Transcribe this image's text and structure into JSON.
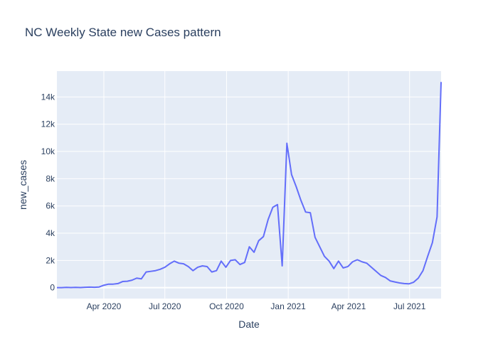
{
  "chart_data": {
    "type": "line",
    "title": "NC Weekly State new Cases pattern",
    "xlabel": "Date",
    "ylabel": "new_cases",
    "colors": {
      "line": "#636efa",
      "plot_bg": "#e5ecf6",
      "grid": "#ffffff",
      "text": "#2a3f5f"
    },
    "grid": true,
    "xlim": [
      "2020-01-22",
      "2021-08-17"
    ],
    "ylim": [
      -800,
      15900
    ],
    "x_ticks": [
      {
        "date": "2020-04-01",
        "label": "Apr 2020"
      },
      {
        "date": "2020-07-01",
        "label": "Jul 2020"
      },
      {
        "date": "2020-10-01",
        "label": "Oct 2020"
      },
      {
        "date": "2021-01-01",
        "label": "Jan 2021"
      },
      {
        "date": "2021-04-01",
        "label": "Apr 2021"
      },
      {
        "date": "2021-07-01",
        "label": "Jul 2021"
      }
    ],
    "y_ticks": [
      {
        "value": 0,
        "label": "0"
      },
      {
        "value": 2000,
        "label": "2k"
      },
      {
        "value": 4000,
        "label": "4k"
      },
      {
        "value": 6000,
        "label": "6k"
      },
      {
        "value": 8000,
        "label": "8k"
      },
      {
        "value": 10000,
        "label": "10k"
      },
      {
        "value": 12000,
        "label": "12k"
      },
      {
        "value": 14000,
        "label": "14k"
      }
    ],
    "series": [
      {
        "x": [
          "2020-01-22",
          "2020-01-29",
          "2020-02-05",
          "2020-02-12",
          "2020-02-19",
          "2020-02-26",
          "2020-03-04",
          "2020-03-11",
          "2020-03-18",
          "2020-03-25",
          "2020-04-01",
          "2020-04-08",
          "2020-04-15",
          "2020-04-22",
          "2020-04-29",
          "2020-05-06",
          "2020-05-13",
          "2020-05-20",
          "2020-05-27",
          "2020-06-03",
          "2020-06-10",
          "2020-06-17",
          "2020-06-24",
          "2020-07-01",
          "2020-07-08",
          "2020-07-15",
          "2020-07-22",
          "2020-07-29",
          "2020-08-05",
          "2020-08-12",
          "2020-08-19",
          "2020-08-26",
          "2020-09-02",
          "2020-09-09",
          "2020-09-16",
          "2020-09-23",
          "2020-09-30",
          "2020-10-07",
          "2020-10-14",
          "2020-10-21",
          "2020-10-28",
          "2020-11-04",
          "2020-11-11",
          "2020-11-18",
          "2020-11-25",
          "2020-12-02",
          "2020-12-09",
          "2020-12-16",
          "2020-12-23",
          "2020-12-30",
          "2021-01-06",
          "2021-01-13",
          "2021-01-20",
          "2021-01-27",
          "2021-02-03",
          "2021-02-10",
          "2021-02-17",
          "2021-02-24",
          "2021-03-03",
          "2021-03-10",
          "2021-03-17",
          "2021-03-24",
          "2021-03-31",
          "2021-04-07",
          "2021-04-14",
          "2021-04-21",
          "2021-04-28",
          "2021-05-05",
          "2021-05-12",
          "2021-05-19",
          "2021-05-26",
          "2021-06-02",
          "2021-06-09",
          "2021-06-16",
          "2021-06-23",
          "2021-06-30",
          "2021-07-07",
          "2021-07-14",
          "2021-07-21",
          "2021-07-28",
          "2021-08-04",
          "2021-08-11",
          "2021-08-17"
        ],
        "y": [
          0,
          0,
          20,
          10,
          20,
          10,
          30,
          40,
          30,
          50,
          180,
          260,
          260,
          300,
          450,
          470,
          550,
          700,
          650,
          1150,
          1200,
          1250,
          1350,
          1500,
          1750,
          1950,
          1800,
          1750,
          1550,
          1250,
          1500,
          1600,
          1550,
          1150,
          1250,
          1950,
          1500,
          2000,
          2050,
          1700,
          1850,
          3000,
          2600,
          3450,
          3750,
          5000,
          5900,
          6100,
          1600,
          10600,
          8300,
          7400,
          6400,
          5550,
          5500,
          3700,
          3000,
          2300,
          1950,
          1400,
          1950,
          1450,
          1550,
          1900,
          2050,
          1900,
          1800,
          1500,
          1200,
          900,
          750,
          500,
          420,
          350,
          300,
          280,
          400,
          700,
          1250,
          2300,
          3300,
          5200,
          15100
        ]
      }
    ]
  }
}
